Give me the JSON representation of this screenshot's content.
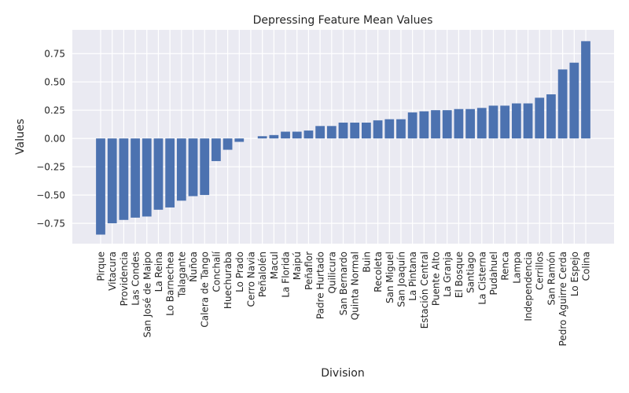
{
  "chart_data": {
    "type": "bar",
    "title": "Depressing Feature Mean Values",
    "xlabel": "Division",
    "ylabel": "Values",
    "ylim": [
      -0.93,
      0.96
    ],
    "yticks": [
      -0.75,
      -0.5,
      -0.25,
      0.0,
      0.25,
      0.5,
      0.75
    ],
    "ytick_labels": [
      "−0.75",
      "−0.50",
      "−0.25",
      "0.00",
      "0.25",
      "0.50",
      "0.75"
    ],
    "grid": true,
    "bar_color": "#4c72b0",
    "background_color": "#eaeaf2",
    "grid_color": "#ffffff",
    "categories": [
      "Pirque",
      "Vitacura",
      "Providencia",
      "Las Condes",
      "San José de Maipo",
      "La Reina",
      "Lo Barnechea",
      "Talagante",
      "Ñuñoa",
      "Calera de Tango",
      "Conchalí",
      "Huechuraba",
      "Lo Prado",
      "Cerro Navia",
      "Peñalolén",
      "Macul",
      "La Florida",
      "Maipú",
      "Peñaflor",
      "Padre Hurtado",
      "Quilicura",
      "San Bernardo",
      "Quinta Normal",
      "Buin",
      "Recoleta",
      "San Miguel",
      "San Joaquín",
      "La Pintana",
      "Estación Central",
      "Puente Alto",
      "La Granja",
      "El Bosque",
      "Santiago",
      "La Cisterna",
      "Pudahuel",
      "Renca",
      "Lampa",
      "Independencia",
      "Cerrillos",
      "San Ramón",
      "Pedro Aguirre Cerda",
      "Lo Espejo",
      "Colina"
    ],
    "values": [
      -0.85,
      -0.75,
      -0.72,
      -0.7,
      -0.69,
      -0.63,
      -0.61,
      -0.55,
      -0.51,
      -0.5,
      -0.2,
      -0.1,
      -0.03,
      0.0,
      0.02,
      0.03,
      0.06,
      0.06,
      0.07,
      0.11,
      0.11,
      0.14,
      0.14,
      0.14,
      0.16,
      0.17,
      0.17,
      0.23,
      0.24,
      0.25,
      0.25,
      0.26,
      0.26,
      0.27,
      0.29,
      0.29,
      0.31,
      0.31,
      0.36,
      0.39,
      0.61,
      0.67,
      0.86
    ]
  }
}
